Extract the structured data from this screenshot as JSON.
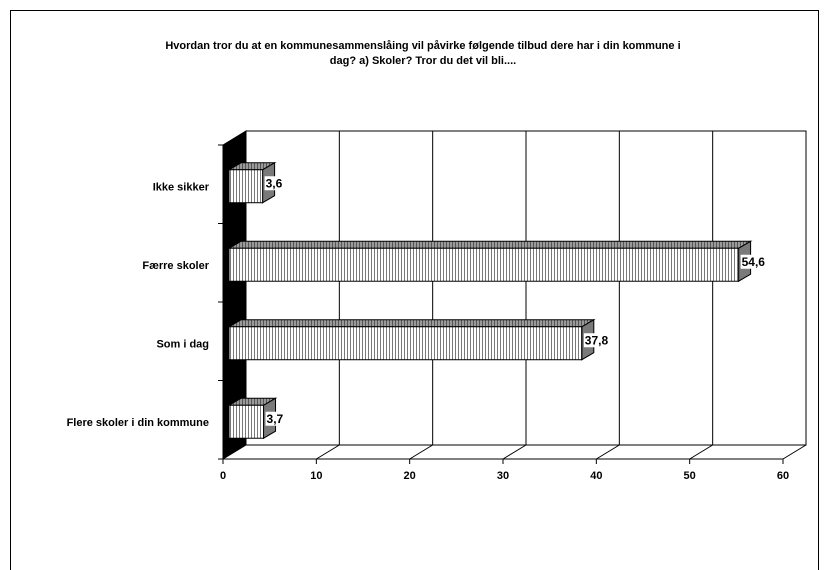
{
  "chart_data": {
    "type": "bar",
    "orientation": "horizontal",
    "title_line1": "Hvordan tror du at en kommunesammenslåing vil påvirke følgende tilbud dere har i din kommune i",
    "title_line2": "dag? a) Skoler? Tror du det vil bli....",
    "categories": [
      "Ikke sikker",
      "Færre skoler",
      "Som i dag",
      "Flere skoler i din kommune"
    ],
    "values": [
      3.6,
      54.6,
      37.8,
      3.7
    ],
    "data_labels": [
      "3,6",
      "54,6",
      "37,8",
      "3,7"
    ],
    "xlim": [
      0,
      60
    ],
    "ticks": [
      0,
      10,
      20,
      30,
      40,
      50,
      60
    ],
    "tick_labels": [
      "0",
      "10",
      "20",
      "30",
      "40",
      "50",
      "60"
    ],
    "grid": true,
    "three_d": true
  }
}
